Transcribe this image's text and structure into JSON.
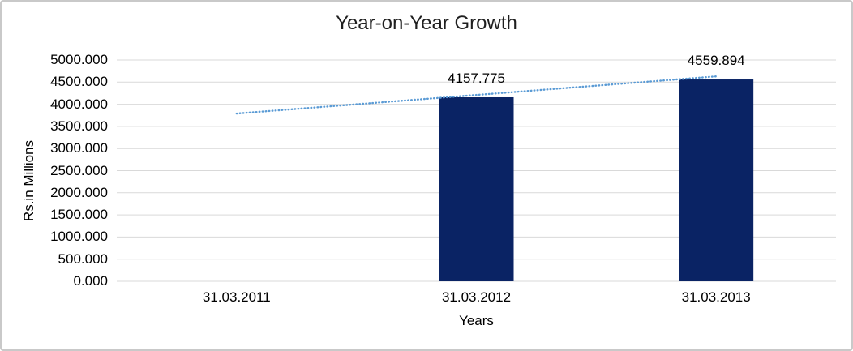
{
  "frame": {
    "background": "#ffffff",
    "border_color": "#c9c9c9"
  },
  "chart_data": {
    "type": "bar",
    "title": "Year-on-Year Growth",
    "xlabel": "Years",
    "ylabel": "Rs.in Millions",
    "categories": [
      "31.03.2011",
      "31.03.2012",
      "31.03.2013"
    ],
    "series": [
      {
        "name": "Rs.in Millions",
        "values": [
          null,
          4157.775,
          4559.894
        ],
        "color": "#0A2364"
      }
    ],
    "data_labels": [
      "",
      "4157.775",
      "4559.894"
    ],
    "y_ticks": [
      {
        "label": "5000.000",
        "value": 5000
      },
      {
        "label": "4500.000",
        "value": 4500
      },
      {
        "label": "4000.000",
        "value": 4000
      },
      {
        "label": "3500.000",
        "value": 3500
      },
      {
        "label": "3000.000",
        "value": 3000
      },
      {
        "label": "2500.000",
        "value": 2500
      },
      {
        "label": "2000.000",
        "value": 2000
      },
      {
        "label": "1500.000",
        "value": 1500
      },
      {
        "label": "1000.000",
        "value": 1000
      },
      {
        "label": "500.000",
        "value": 500
      },
      {
        "label": "0.000",
        "value": 0
      }
    ],
    "ylim": [
      0,
      5000
    ],
    "grid": true,
    "gridline_color": "#D9D9D9",
    "legend": "none",
    "trendline": {
      "type": "linear",
      "style": "dotted",
      "color": "#5B9BD5",
      "from_category_index": 0,
      "to_category_index": 2,
      "start_value": 3790,
      "end_value": 4630
    }
  }
}
